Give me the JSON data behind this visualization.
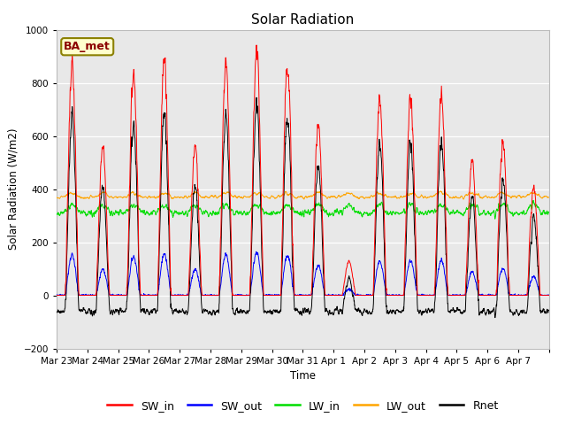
{
  "title": "Solar Radiation",
  "ylabel": "Solar Radiation (W/m2)",
  "xlabel": "Time",
  "ylim": [
    -200,
    1000
  ],
  "yticks": [
    -200,
    0,
    200,
    400,
    600,
    800,
    1000
  ],
  "background_color": "#e8e8e8",
  "annotation_text": "BA_met",
  "annotation_color": "#8b0000",
  "annotation_bg": "#ffffcc",
  "annotation_edge": "#8b8000",
  "colors": {
    "SW_in": "#ff0000",
    "SW_out": "#0000ff",
    "LW_in": "#00dd00",
    "LW_out": "#ffa500",
    "Rnet": "#000000"
  },
  "x_tick_labels": [
    "Mar 23",
    "Mar 24",
    "Mar 25",
    "Mar 26",
    "Mar 27",
    "Mar 28",
    "Mar 29",
    "Mar 30",
    "Mar 31",
    "Apr 1",
    "Apr 2",
    "Apr 3",
    "Apr 4",
    "Apr 5",
    "Apr 6",
    "Apr 7"
  ],
  "n_days": 16,
  "pts_per_day": 144,
  "sw_in_peaks": [
    870,
    560,
    840,
    900,
    560,
    880,
    920,
    880,
    640,
    130,
    750,
    760,
    760,
    510,
    580,
    400
  ],
  "sw_out_ratio": 0.175,
  "lw_in_base": 310,
  "lw_out_base": 370,
  "rnet_night": -80
}
